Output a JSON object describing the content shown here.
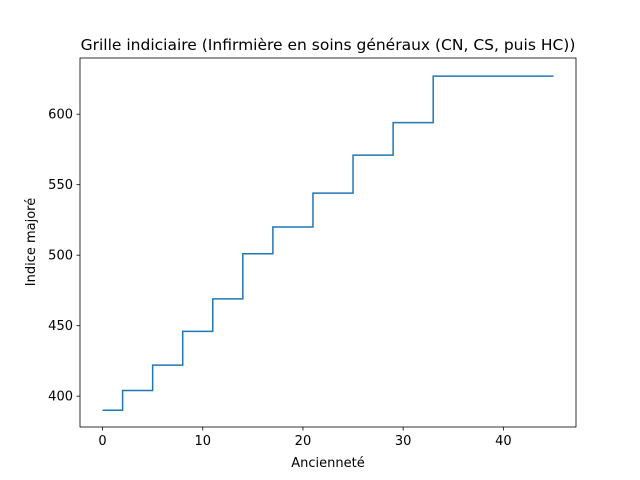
{
  "chart_data": {
    "type": "line",
    "step": "post",
    "title": "Grille indiciaire (Infirmière en soins généraux (CN, CS, puis HC))",
    "xlabel": "Ancienneté",
    "ylabel": "Indice majoré",
    "xlim": [
      -2.25,
      47.25
    ],
    "ylim": [
      378.15,
      639.85
    ],
    "xticks": [
      0,
      10,
      20,
      30,
      40
    ],
    "yticks": [
      400,
      450,
      500,
      550,
      600
    ],
    "grid": false,
    "series": [
      {
        "color": "#1f77b4",
        "x": [
          0,
          2,
          5,
          8,
          11,
          14,
          17,
          21,
          25,
          29,
          33,
          45
        ],
        "y": [
          390,
          404,
          422,
          446,
          469,
          501,
          520,
          544,
          571,
          594,
          627,
          627
        ]
      }
    ]
  }
}
